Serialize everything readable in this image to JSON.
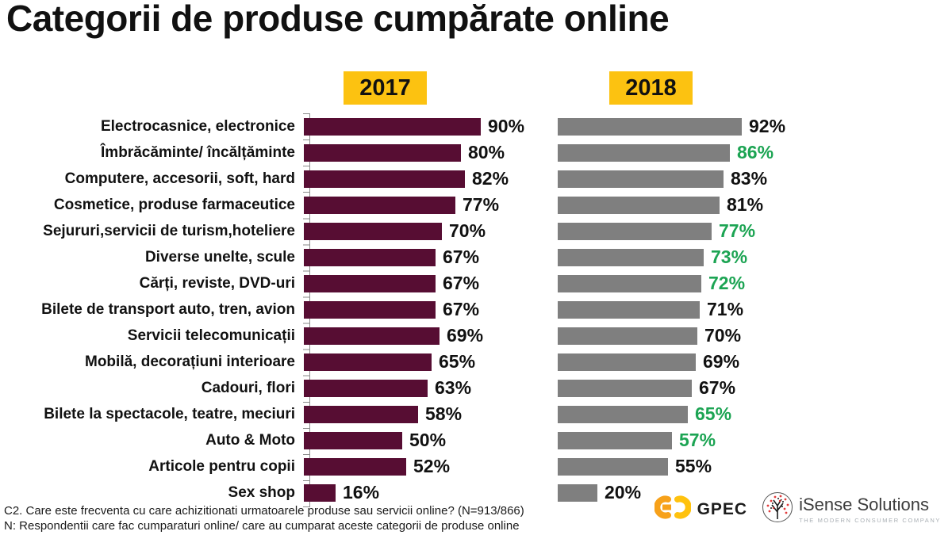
{
  "title": "Categorii de produse cumpărate online",
  "chart": {
    "year_left": "2017",
    "year_right": "2018"
  },
  "chart_data": {
    "type": "bar",
    "orientation": "horizontal",
    "title": "Categorii de produse cumpărate online",
    "value_suffix": "%",
    "xlim": [
      0,
      100
    ],
    "grid": false,
    "legend_position": "top",
    "categories": [
      "Electrocasnice, electronice",
      "Îmbrăcăminte/ încălțăminte",
      "Computere, accesorii, soft, hard",
      "Cosmetice, produse farmaceutice",
      "Sejururi,servicii de turism,hoteliere",
      "Diverse unelte, scule",
      "Cărți, reviste, DVD-uri",
      "Bilete de transport auto, tren, avion",
      "Servicii telecomunicații",
      "Mobilă, decorațiuni interioare",
      "Cadouri, flori",
      "Bilete la spectacole, teatre, meciuri",
      "Auto & Moto",
      "Articole pentru copii",
      "Sex shop"
    ],
    "series": [
      {
        "name": "2017",
        "color": "#570d33",
        "values": [
          90,
          80,
          82,
          77,
          70,
          67,
          67,
          67,
          69,
          65,
          63,
          58,
          50,
          52,
          16
        ]
      },
      {
        "name": "2018",
        "color": "#7f7f7f",
        "values": [
          92,
          86,
          83,
          81,
          77,
          73,
          72,
          71,
          70,
          69,
          67,
          65,
          57,
          55,
          20
        ],
        "highlighted": [
          false,
          true,
          false,
          false,
          true,
          true,
          true,
          false,
          false,
          false,
          false,
          true,
          true,
          false,
          false
        ]
      }
    ]
  },
  "footer": {
    "line1": "C2.  Care este frecventa cu care achizitionati urmatoarele produse sau servicii online? (N=913/866)",
    "line2": "N: Respondentii care fac cumparaturi online/ care au cumparat aceste categorii de produse online"
  },
  "logos": {
    "gpec_label": "GPEC",
    "isense_label": "iSense Solutions",
    "isense_tagline": "THE MODERN CONSUMER COMPANY"
  },
  "colors": {
    "bar_2017": "#570d33",
    "bar_2018": "#7f7f7f",
    "year_badge_bg": "#fcc211",
    "highlight_value": "#1ca453",
    "value_text": "#111111",
    "axis": "#8a8a8a"
  }
}
